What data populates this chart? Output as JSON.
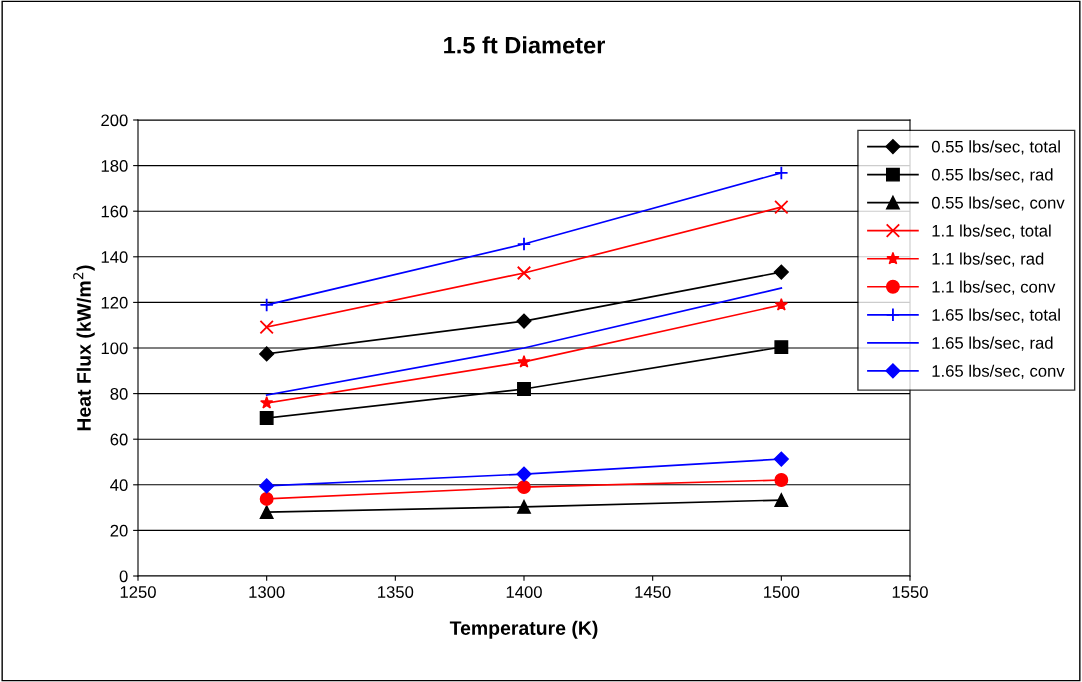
{
  "chart_data": {
    "type": "line",
    "title": "1.5 ft Diameter",
    "xlabel": "Temperature (K)",
    "ylabel": "Heat Flux (kW/m$^{2}$)",
    "x": [
      1300,
      1400,
      1500
    ],
    "xlim": [
      1250,
      1550
    ],
    "xticks": [
      1250,
      1300,
      1350,
      1400,
      1450,
      1500,
      1550
    ],
    "ylim": [
      0,
      200
    ],
    "yticks": [
      0,
      20,
      40,
      60,
      80,
      100,
      120,
      140,
      160,
      180,
      200
    ],
    "grid": "y",
    "legend": "right",
    "line_style": "solid",
    "series": [
      {
        "name": "0.55 lbs/sec, total",
        "color": "#000000",
        "marker": "diamond",
        "values": [
          97.4,
          111.8,
          133.3
        ]
      },
      {
        "name": "0.55 lbs/sec, rad",
        "color": "#000000",
        "marker": "square",
        "values": [
          69.3,
          82,
          100.4
        ]
      },
      {
        "name": "0.55 lbs/sec, conv",
        "color": "#000000",
        "marker": "triangle",
        "values": [
          28,
          30.3,
          33.3
        ]
      },
      {
        "name": "1.1 lbs/sec, total",
        "color": "#ff0000",
        "marker": "cross",
        "values": [
          109.2,
          132.9,
          161.8
        ]
      },
      {
        "name": "1.1 lbs/sec, rad",
        "color": "#ff0000",
        "marker": "star",
        "values": [
          75.9,
          93.9,
          118.9
        ]
      },
      {
        "name": "1.1 lbs/sec, conv",
        "color": "#ff0000",
        "marker": "circle",
        "values": [
          33.8,
          39,
          42.1
        ]
      },
      {
        "name": "1.65 lbs/sec, total",
        "color": "#0000ff",
        "marker": "plus",
        "values": [
          118.9,
          145.6,
          176.8
        ]
      },
      {
        "name": "1.65 lbs/sec, rad",
        "color": "#0000ff",
        "marker": "none",
        "values": [
          79.4,
          100,
          126.3
        ]
      },
      {
        "name": "1.65 lbs/sec, conv",
        "color": "#0000ff",
        "marker": "diamond",
        "values": [
          39.5,
          44.7,
          51.3
        ]
      }
    ]
  }
}
